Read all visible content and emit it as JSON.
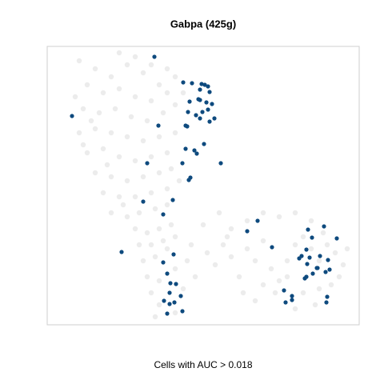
{
  "chart_data": {
    "type": "scatter",
    "title": "Gabpa (425g)",
    "xlabel": "Cells with AUC > 0.018",
    "xlim": [
      0,
      390
    ],
    "ylim": [
      0,
      348
    ],
    "series": [
      {
        "color": "#e4e4e4",
        "x": [
          40,
          60,
          80,
          100,
          120,
          140,
          50,
          70,
          90,
          110,
          130,
          150,
          160,
          45,
          65,
          85,
          105,
          125,
          145,
          160,
          40,
          60,
          80,
          100,
          120,
          140,
          160,
          50,
          70,
          90,
          110,
          130,
          150,
          60,
          80,
          100,
          120,
          140,
          155,
          70,
          90,
          110,
          130,
          150,
          165,
          80,
          100,
          115,
          135,
          150,
          35,
          55,
          75,
          95,
          170,
          150,
          110,
          90,
          130,
          45,
          110,
          125,
          140,
          155,
          115,
          130,
          145,
          160,
          120,
          135,
          150,
          125,
          140,
          160,
          130,
          140,
          160,
          170,
          135,
          175,
          185,
          180,
          200,
          210,
          220,
          230,
          240,
          250,
          260,
          270,
          280,
          290,
          300,
          310,
          320,
          330,
          340,
          350,
          360,
          370,
          375,
          365,
          355,
          340,
          320,
          300,
          285,
          270,
          260,
          245,
          230,
          250,
          270,
          290,
          310,
          330,
          345,
          310,
          335,
          195,
          215,
          225
        ],
        "y": [
          330,
          320,
          310,
          325,
          315,
          300,
          300,
          290,
          295,
          285,
          280,
          290,
          310,
          270,
          265,
          270,
          260,
          255,
          265,
          275,
          240,
          245,
          240,
          235,
          230,
          235,
          240,
          215,
          220,
          210,
          205,
          210,
          215,
          190,
          185,
          180,
          185,
          190,
          195,
          165,
          160,
          160,
          165,
          170,
          180,
          140,
          135,
          140,
          145,
          150,
          285,
          255,
          200,
          150,
          290,
          320,
          335,
          340,
          325,
          225,
          120,
          115,
          120,
          125,
          100,
          100,
          105,
          110,
          80,
          85,
          95,
          60,
          55,
          70,
          40,
          25,
          15,
          45,
          10,
          80,
          60,
          100,
          90,
          75,
          100,
          85,
          60,
          95,
          80,
          105,
          70,
          55,
          80,
          100,
          110,
          95,
          80,
          100,
          90,
          75,
          95,
          60,
          50,
          45,
          40,
          60,
          40,
          50,
          30,
          40,
          120,
          130,
          140,
          135,
          140,
          130,
          115,
          20,
          25,
          125,
          140,
          110
        ]
      },
      {
        "color": "#0e4a7e",
        "x": [
          134,
          170,
          181,
          193,
          197,
          201,
          191,
          203,
          191,
          178,
          189,
          199,
          206,
          201,
          194,
          209,
          203,
          191,
          186,
          176,
          173,
          175,
          139,
          31,
          196,
          184,
          187,
          173,
          169,
          125,
          217,
          179,
          177,
          157,
          120,
          145,
          263,
          250,
          326,
          346,
          331,
          362,
          281,
          93,
          145,
          158,
          324,
          318,
          328,
          315,
          341,
          351,
          325,
          338,
          348,
          353,
          332,
          324,
          150,
          154,
          161,
          153,
          146,
          153,
          159,
          167,
          169,
          150,
          296,
          306,
          298,
          306,
          350,
          349,
          322,
          337
        ],
        "y": [
          335,
          303,
          302,
          301,
          300,
          298,
          294,
          291,
          281,
          279,
          282,
          278,
          276,
          269,
          266,
          258,
          254,
          258,
          262,
          266,
          249,
          248,
          249,
          261,
          226,
          218,
          214,
          220,
          202,
          202,
          202,
          184,
          181,
          156,
          154,
          138,
          130,
          117,
          119,
          123,
          109,
          108,
          97,
          91,
          78,
          88,
          94,
          86,
          84,
          83,
          86,
          81,
          76,
          71,
          66,
          69,
          64,
          60,
          64,
          52,
          51,
          40,
          30,
          26,
          28,
          36,
          17,
          14,
          43,
          36,
          28,
          31,
          35,
          28,
          58,
          71
        ]
      }
    ]
  }
}
